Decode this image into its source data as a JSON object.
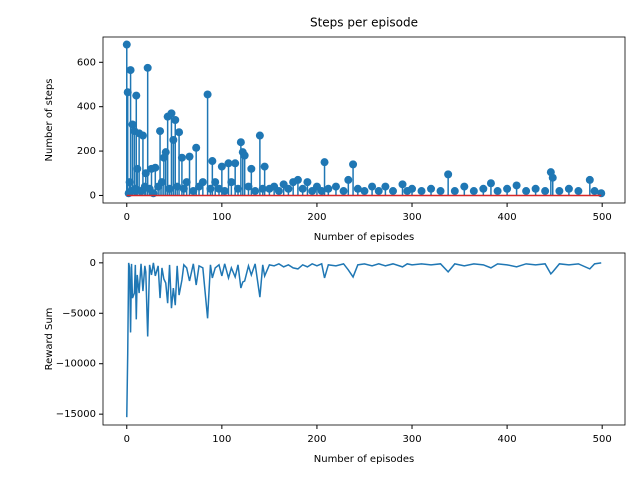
{
  "chart_data": [
    {
      "type": "stem",
      "title": "Steps per episode",
      "xlabel": "Number of episodes",
      "ylabel": "Number of steps",
      "color": "#1f77b4",
      "x": [
        0,
        1,
        2,
        3,
        4,
        5,
        6,
        8,
        9,
        10,
        11,
        13,
        15,
        17,
        19,
        20,
        22,
        24,
        26,
        28,
        30,
        33,
        35,
        37,
        39,
        41,
        43,
        45,
        47,
        49,
        51,
        53,
        55,
        58,
        60,
        63,
        66,
        70,
        73,
        76,
        80,
        85,
        88,
        90,
        93,
        97,
        100,
        103,
        107,
        110,
        114,
        117,
        120,
        122,
        124,
        128,
        131,
        135,
        140,
        143,
        145,
        150,
        155,
        160,
        165,
        170,
        175,
        180,
        185,
        190,
        195,
        200,
        205,
        208,
        212,
        220,
        228,
        233,
        238,
        243,
        250,
        258,
        265,
        272,
        280,
        290,
        295,
        300,
        310,
        320,
        330,
        338,
        345,
        355,
        365,
        375,
        383,
        390,
        400,
        410,
        420,
        430,
        440,
        446,
        448,
        455,
        465,
        475,
        487,
        492,
        499
      ],
      "values": [
        680,
        465,
        10,
        60,
        565,
        20,
        320,
        290,
        30,
        450,
        120,
        280,
        20,
        270,
        40,
        100,
        575,
        30,
        120,
        10,
        125,
        40,
        290,
        60,
        170,
        195,
        355,
        30,
        370,
        250,
        340,
        40,
        285,
        170,
        30,
        60,
        175,
        20,
        215,
        40,
        60,
        455,
        30,
        155,
        60,
        30,
        130,
        20,
        145,
        60,
        145,
        30,
        240,
        195,
        180,
        40,
        120,
        20,
        270,
        30,
        130,
        30,
        40,
        20,
        50,
        30,
        60,
        70,
        30,
        60,
        20,
        40,
        20,
        150,
        30,
        40,
        20,
        70,
        140,
        30,
        20,
        40,
        20,
        40,
        20,
        50,
        20,
        30,
        20,
        30,
        20,
        95,
        20,
        40,
        20,
        30,
        55,
        20,
        30,
        45,
        20,
        30,
        20,
        105,
        80,
        20,
        30,
        20,
        70,
        20,
        10
      ],
      "xlim": [
        -25,
        524
      ],
      "ylim": [
        -34,
        714
      ],
      "xticks": [
        0,
        100,
        200,
        300,
        400,
        500
      ],
      "yticks": [
        0,
        200,
        400,
        600
      ]
    },
    {
      "type": "line",
      "xlabel": "Number of episodes",
      "ylabel": "Reward Sum",
      "color": "#1f77b4",
      "x": [
        0,
        1,
        2,
        3,
        4,
        5,
        6,
        8,
        9,
        10,
        11,
        13,
        15,
        17,
        19,
        20,
        22,
        24,
        26,
        28,
        30,
        33,
        35,
        37,
        39,
        41,
        43,
        45,
        47,
        49,
        51,
        53,
        55,
        58,
        60,
        63,
        66,
        70,
        73,
        76,
        80,
        85,
        88,
        90,
        93,
        97,
        100,
        103,
        107,
        110,
        114,
        117,
        120,
        122,
        124,
        128,
        131,
        135,
        140,
        143,
        145,
        150,
        155,
        160,
        165,
        170,
        175,
        180,
        185,
        190,
        195,
        200,
        205,
        208,
        212,
        220,
        228,
        233,
        238,
        243,
        250,
        258,
        265,
        272,
        280,
        290,
        295,
        300,
        310,
        320,
        330,
        338,
        345,
        355,
        365,
        375,
        383,
        390,
        400,
        410,
        420,
        430,
        440,
        446,
        448,
        455,
        465,
        475,
        487,
        492,
        499
      ],
      "values": [
        -15300,
        -9000,
        0,
        -500,
        -6900,
        -100,
        -3500,
        -3000,
        -200,
        -5600,
        -1200,
        -3000,
        -100,
        -2800,
        -300,
        -900,
        -7300,
        -200,
        -1200,
        0,
        -1300,
        -300,
        -3500,
        -500,
        -1600,
        -2000,
        -4000,
        -200,
        -4500,
        -2500,
        -4200,
        -300,
        -3200,
        -1700,
        -200,
        -500,
        -1800,
        -100,
        -2200,
        -300,
        -500,
        -5500,
        -200,
        -1500,
        -500,
        -200,
        -1300,
        -100,
        -1500,
        -500,
        -1400,
        -200,
        -2500,
        -1900,
        -1800,
        -300,
        -1200,
        -100,
        -3400,
        -200,
        -1300,
        -200,
        -300,
        -100,
        -400,
        -200,
        -500,
        -600,
        -200,
        -400,
        -100,
        -300,
        -100,
        -1500,
        -200,
        -300,
        -100,
        -700,
        -1400,
        -200,
        -100,
        -300,
        -100,
        -300,
        -100,
        -400,
        -100,
        -200,
        -100,
        -200,
        -100,
        -900,
        -100,
        -300,
        -100,
        -200,
        -500,
        -100,
        -200,
        -400,
        -100,
        -200,
        -100,
        -1100,
        -900,
        -100,
        -200,
        -100,
        -600,
        -100,
        0
      ],
      "xlim": [
        -25,
        524
      ],
      "ylim": [
        -16075,
        975
      ],
      "xticks": [
        0,
        100,
        200,
        300,
        400,
        500
      ],
      "yticks": [
        {
          "value": -15000,
          "label": "−15000"
        },
        {
          "value": -10000,
          "label": "−10000"
        },
        {
          "value": -5000,
          "label": "−5000"
        },
        0
      ]
    }
  ]
}
